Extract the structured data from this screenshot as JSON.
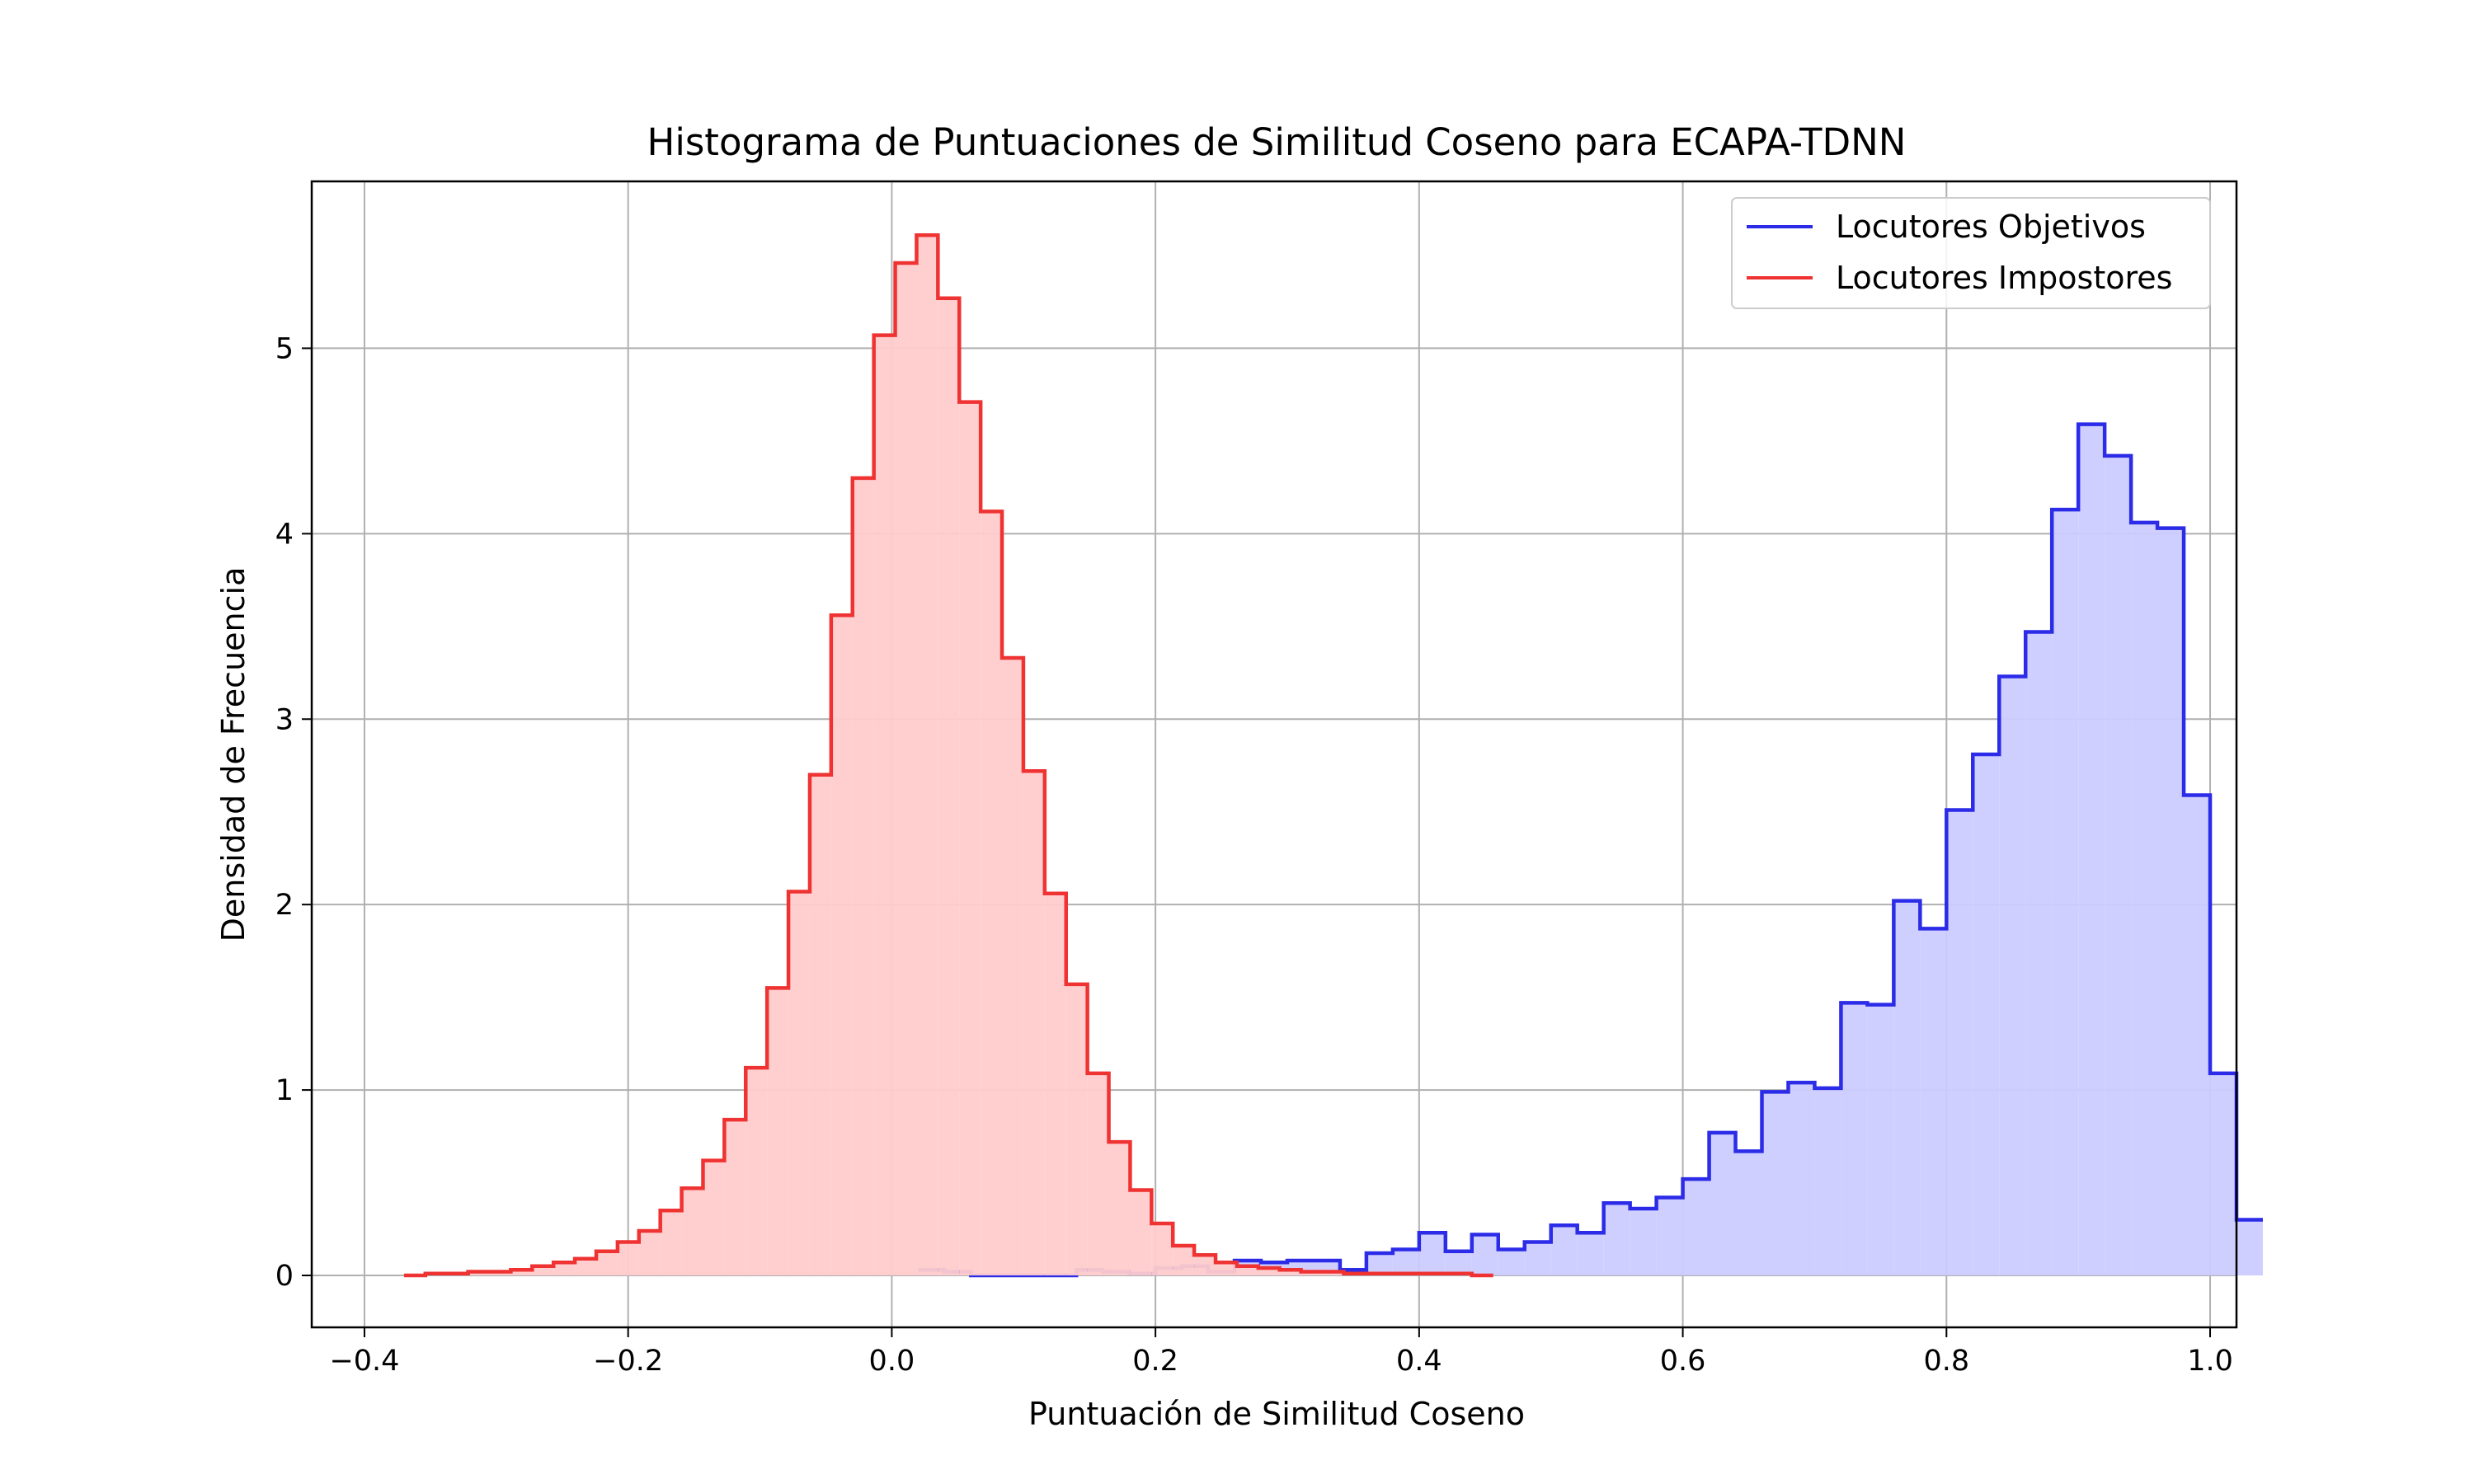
{
  "chart_data": {
    "type": "histogram",
    "title": "Histograma de Puntuaciones de Similitud Coseno para ECAPA-TDNN",
    "xlabel": "Puntuación de Similitud Coseno",
    "ylabel": "Densidad de Frecuencia",
    "xlim": [
      -0.44,
      1.02
    ],
    "ylim": [
      -0.28,
      5.9
    ],
    "xticks": [
      -0.4,
      -0.2,
      0.0,
      0.2,
      0.4,
      0.6,
      0.8,
      1.0
    ],
    "xtick_labels": [
      "−0.4",
      "−0.2",
      "0.0",
      "0.2",
      "0.4",
      "0.6",
      "0.8",
      "1.0"
    ],
    "yticks": [
      0,
      1,
      2,
      3,
      4,
      5
    ],
    "ytick_labels": [
      "0",
      "1",
      "2",
      "3",
      "4",
      "5"
    ],
    "grid": true,
    "legend": "top-right",
    "series": [
      {
        "name": "Locutores Objetivos",
        "color": "#2b2be8",
        "fill": "#ccccff",
        "bin_start": 0.02,
        "bin_width": 0.02,
        "values": [
          0.03,
          0.02,
          0.0,
          0.0,
          0.0,
          0.0,
          0.03,
          0.02,
          0.01,
          0.04,
          0.05,
          0.02,
          0.08,
          0.07,
          0.08,
          0.08,
          0.03,
          0.12,
          0.14,
          0.23,
          0.13,
          0.22,
          0.14,
          0.18,
          0.27,
          0.23,
          0.39,
          0.36,
          0.42,
          0.52,
          0.77,
          0.67,
          0.99,
          1.04,
          1.01,
          1.47,
          1.46,
          2.02,
          1.87,
          2.51,
          2.81,
          3.23,
          3.47,
          4.13,
          4.59,
          4.42,
          4.06,
          4.03,
          2.59,
          1.09,
          0.3
        ]
      },
      {
        "name": "Locutores Impostores",
        "color": "#ef3232",
        "fill": "#ffcccc",
        "bin_start": -0.37,
        "bin_width": 0.0162,
        "values": [
          0.0,
          0.01,
          0.01,
          0.02,
          0.02,
          0.03,
          0.05,
          0.07,
          0.09,
          0.13,
          0.18,
          0.24,
          0.35,
          0.47,
          0.62,
          0.84,
          1.12,
          1.55,
          2.07,
          2.7,
          3.56,
          4.3,
          5.07,
          5.46,
          5.61,
          5.27,
          4.71,
          4.12,
          3.33,
          2.72,
          2.06,
          1.57,
          1.09,
          0.72,
          0.46,
          0.28,
          0.16,
          0.11,
          0.07,
          0.05,
          0.04,
          0.03,
          0.02,
          0.02,
          0.01,
          0.01,
          0.01,
          0.01,
          0.01,
          0.01,
          0.0
        ]
      }
    ]
  }
}
